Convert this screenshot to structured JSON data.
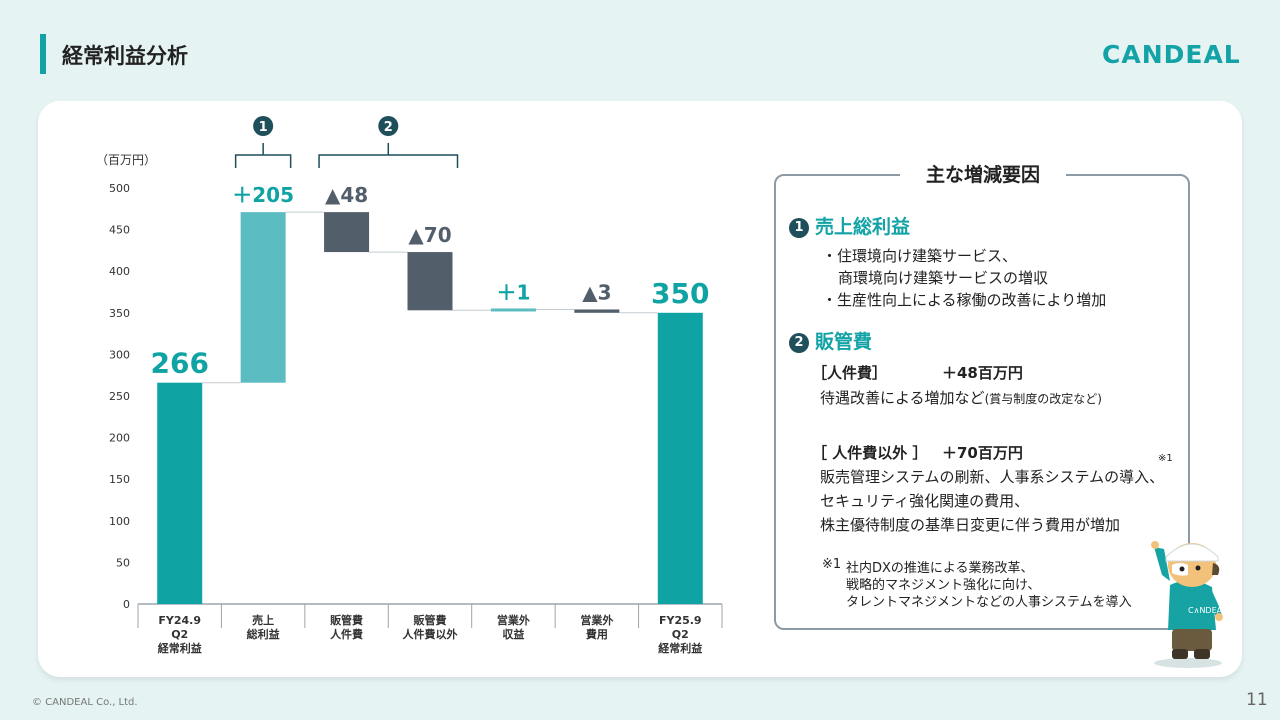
{
  "page": {
    "title": "経常利益分析",
    "logo": "CANDEAL",
    "footer": "© CANDEAL Co., Ltd.",
    "page_number": "11"
  },
  "chart_data": {
    "type": "bar",
    "subtype": "waterfall",
    "unit_label": "（百万円）",
    "ylim": [
      0,
      500
    ],
    "yticks": [
      0,
      50,
      100,
      150,
      200,
      250,
      300,
      350,
      400,
      450,
      500
    ],
    "categories": [
      [
        "FY24.9",
        "Q2",
        "経常利益"
      ],
      [
        "売上",
        "総利益"
      ],
      [
        "販管費",
        "人件費"
      ],
      [
        "販管費",
        "人件費以外"
      ],
      [
        "営業外",
        "収益"
      ],
      [
        "営業外",
        "費用"
      ],
      [
        "FY25.9",
        "Q2",
        "経常利益"
      ]
    ],
    "bars": [
      {
        "kind": "total",
        "start": 0,
        "end": 266,
        "label": "266",
        "color": "#0fa3a3"
      },
      {
        "kind": "increase",
        "start": 266,
        "end": 471,
        "label": "＋205",
        "color": "#5bbcc2"
      },
      {
        "kind": "decrease",
        "start": 471,
        "end": 423,
        "label": "▲48",
        "color": "#525f6b"
      },
      {
        "kind": "decrease",
        "start": 423,
        "end": 353,
        "label": "▲70",
        "color": "#525f6b"
      },
      {
        "kind": "increase",
        "start": 353,
        "end": 354,
        "label": "＋1",
        "color": "#5bbcc2"
      },
      {
        "kind": "decrease",
        "start": 354,
        "end": 350,
        "label": "▲3",
        "color": "#525f6b"
      },
      {
        "kind": "total",
        "start": 0,
        "end": 350,
        "label": "350",
        "color": "#0fa3a3"
      }
    ],
    "groups": [
      {
        "label": "1",
        "from": 1,
        "to": 1
      },
      {
        "label": "2",
        "from": 2,
        "to": 3
      }
    ],
    "colors": {
      "total": "#0fa3a3",
      "increase": "#5bbcc2",
      "decrease": "#525f6b",
      "accent_text": "#13a3a6",
      "badge": "#1f4f5a"
    }
  },
  "factors": {
    "title": "主な増減要因",
    "sec1": {
      "badge": "1",
      "heading": "売上総利益",
      "lines": [
        "・住環境向け建築サービス、",
        "商環境向け建築サービスの増収",
        "・生産性向上による稼働の改善により増加"
      ]
    },
    "sec2": {
      "badge": "2",
      "heading": "販管費",
      "personnel_label": "［人件費］",
      "personnel_value": "＋48百万円",
      "personnel_desc": "待遇改善による増加など",
      "personnel_desc_small": "(賞与制度の改定など)",
      "other_label": "［ 人件費以外 ］",
      "other_value": "＋70百万円",
      "other_mark": "※1",
      "other_lines": [
        "販売管理システムの刷新、人事系システムの導入、",
        "セキュリティ強化関連の費用、",
        "株主優待制度の基準日変更に伴う費用が増加"
      ]
    },
    "note": {
      "mark": "※1",
      "lines": [
        "社内DXの推進による業務改革、",
        "戦略的マネジメント強化に向け、",
        "タレントマネジメントなどの人事システムを導入"
      ]
    }
  }
}
